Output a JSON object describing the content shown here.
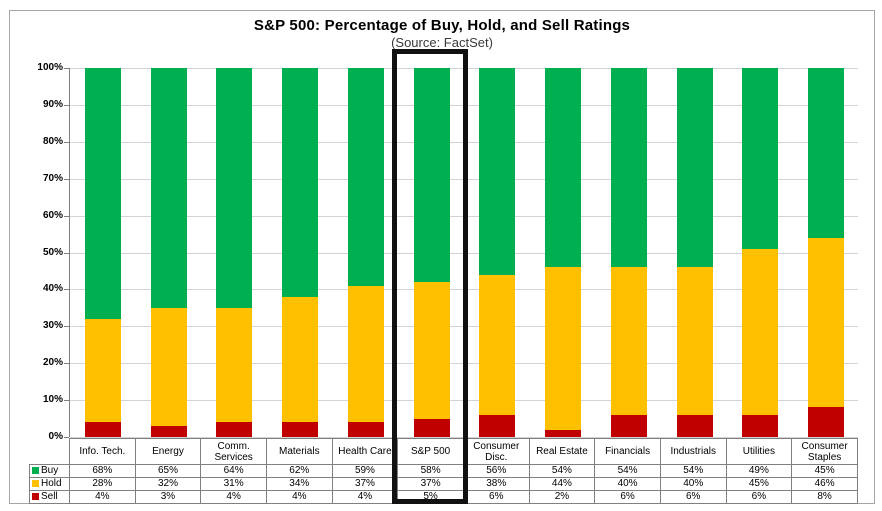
{
  "header": {
    "title": "S&P 500: Percentage of Buy, Hold, and Sell Ratings",
    "subtitle": "(Source: FactSet)"
  },
  "chart_data": {
    "type": "bar",
    "stacked": true,
    "title": "S&P 500: Percentage of Buy, Hold, and Sell Ratings",
    "subtitle": "(Source: FactSet)",
    "categories": [
      "Info. Tech.",
      "Energy",
      "Comm. Services",
      "Materials",
      "Health Care",
      "S&P 500",
      "Consumer Disc.",
      "Real Estate",
      "Financials",
      "Industrials",
      "Utilities",
      "Consumer Staples"
    ],
    "series": [
      {
        "name": "Buy",
        "color": "#00B050",
        "values": [
          68,
          65,
          64,
          62,
          59,
          58,
          56,
          54,
          54,
          54,
          49,
          45
        ]
      },
      {
        "name": "Hold",
        "color": "#FFC000",
        "values": [
          28,
          32,
          31,
          34,
          37,
          37,
          38,
          44,
          40,
          40,
          45,
          46
        ]
      },
      {
        "name": "Sell",
        "color": "#C00000",
        "values": [
          4,
          3,
          4,
          4,
          4,
          5,
          6,
          2,
          6,
          6,
          6,
          8
        ]
      }
    ],
    "value_suffix": "%",
    "ylim": [
      0,
      100
    ],
    "y_ticks": [
      "0%",
      "10%",
      "20%",
      "30%",
      "40%",
      "50%",
      "60%",
      "70%",
      "80%",
      "90%",
      "100%"
    ],
    "grid": true,
    "legend_position": "table-left",
    "highlighted_category": "S&P 500"
  },
  "style": {
    "gridline_color": "#d3d3d3",
    "axis_color": "#808080",
    "table_border_color": "#808080",
    "highlight_color": "#111111"
  }
}
